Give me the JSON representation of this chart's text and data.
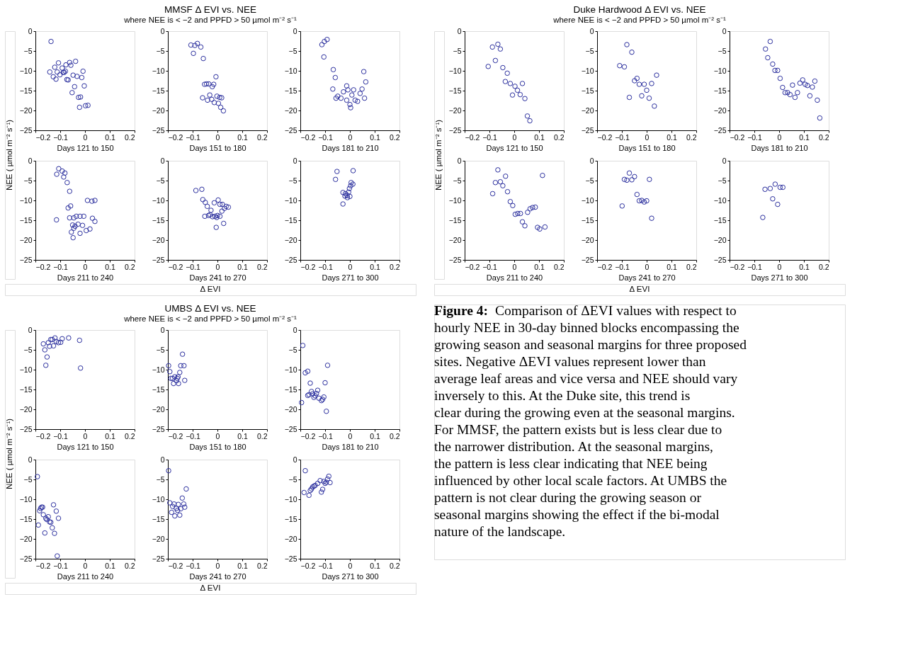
{
  "chart_data": [
    {
      "type": "other",
      "title": "MMSF   Δ EVI vs. NEE",
      "subtitle": "where NEE is < −2 and PPFD > 50        µmol m⁻² s⁻¹",
      "ylabel": "NEE (  µmol m⁻² s⁻¹)",
      "annotations": [
        "Δ EVI"
      ]
    },
    {
      "type": "scatter",
      "xlabel": "Days 121 to 150",
      "marker": "circle",
      "color": "#2b2f9e",
      "xlim": [
        -0.2,
        0.2
      ],
      "xticks": [
        -0.2,
        -0.1,
        0,
        0.1,
        0.2
      ],
      "ylim": [
        -25,
        0
      ],
      "yticks": [
        -25,
        -20,
        -15,
        -10,
        -5,
        0
      ],
      "x": [
        -0.137,
        -0.142,
        -0.128,
        -0.122,
        -0.117,
        -0.107,
        -0.112,
        -0.101,
        -0.092,
        -0.088,
        -0.084,
        -0.079,
        -0.077,
        -0.073,
        -0.068,
        -0.062,
        -0.057,
        -0.048,
        -0.038,
        -0.032,
        -0.042,
        -0.052,
        -0.026,
        -0.018,
        -0.013,
        -0.008,
        -0.003,
        -0.022,
        0.002,
        0.012
      ],
      "values": [
        -2.6,
        -10.3,
        -11.5,
        -9.1,
        -12.1,
        -8.0,
        -10.3,
        -11.0,
        -9.3,
        -10.4,
        -10.4,
        -10.1,
        -8.5,
        -12.2,
        -12.3,
        -7.9,
        -8.6,
        -11.1,
        -7.6,
        -11.4,
        -14.0,
        -15.5,
        -16.7,
        -16.6,
        -11.7,
        -10.1,
        -13.8,
        -19.2,
        -18.8,
        -18.7
      ]
    },
    {
      "type": "scatter",
      "xlabel": "Days 151 to 180",
      "marker": "circle",
      "color": "#2b2f9e",
      "xlim": [
        -0.2,
        0.2
      ],
      "xticks": [
        -0.2,
        -0.1,
        0,
        0.1,
        0.2
      ],
      "ylim": [
        -25,
        0
      ],
      "yticks": [
        -25,
        -20,
        -15,
        -10,
        -5,
        0
      ],
      "x": [
        -0.107,
        -0.091,
        -0.081,
        -0.067,
        -0.097,
        -0.057,
        -0.006,
        -0.052,
        -0.044,
        -0.035,
        -0.021,
        -0.015,
        -0.06,
        -0.04,
        -0.031,
        -0.023,
        -0.002,
        0.009,
        0.017,
        -0.013,
        0.004,
        0.013,
        0.024
      ],
      "values": [
        -3.5,
        -3.6,
        -3.1,
        -4.0,
        -5.6,
        -6.9,
        -11.5,
        -13.4,
        -13.3,
        -13.3,
        -14.0,
        -13.4,
        -16.8,
        -17.4,
        -16.1,
        -17.2,
        -16.4,
        -16.7,
        -16.8,
        -18.0,
        -18.2,
        -19.2,
        -20.1
      ]
    },
    {
      "type": "scatter",
      "xlabel": "Days 181 to 210",
      "marker": "circle",
      "color": "#2b2f9e",
      "xlim": [
        -0.2,
        0.2
      ],
      "xticks": [
        -0.2,
        -0.1,
        0,
        0.1,
        0.2
      ],
      "ylim": [
        -25,
        0
      ],
      "yticks": [
        -25,
        -20,
        -15,
        -10,
        -5,
        0
      ],
      "x": [
        -0.113,
        -0.103,
        -0.092,
        -0.105,
        -0.067,
        -0.059,
        -0.069,
        -0.049,
        -0.056,
        -0.026,
        -0.036,
        -0.013,
        -0.008,
        -0.013,
        0.0,
        0.003,
        0.015,
        0.008,
        0.021,
        0.041,
        0.031,
        0.059,
        0.049,
        0.064,
        0.056
      ],
      "values": [
        -3.4,
        -2.6,
        -2.1,
        -6.5,
        -9.7,
        -11.7,
        -14.6,
        -16.4,
        -16.9,
        -15.3,
        -16.9,
        -13.8,
        -14.8,
        -17.4,
        -18.5,
        -19.3,
        -14.8,
        -16.1,
        -17.4,
        -15.7,
        -17.7,
        -16.9,
        -14.6,
        -12.8,
        -10.2
      ]
    },
    {
      "type": "scatter",
      "xlabel": "Days 211 to 240",
      "marker": "circle",
      "color": "#2b2f9e",
      "xlim": [
        -0.2,
        0.2
      ],
      "xticks": [
        -0.2,
        -0.1,
        0,
        0.1,
        0.2
      ],
      "ylim": [
        -25,
        0
      ],
      "yticks": [
        -25,
        -20,
        -15,
        -10,
        -5,
        0
      ],
      "x": [
        -0.114,
        -0.106,
        -0.092,
        -0.086,
        -0.081,
        -0.072,
        -0.062,
        -0.068,
        -0.058,
        -0.115,
        -0.062,
        -0.045,
        -0.035,
        -0.02,
        -0.005,
        0.03,
        0.04,
        -0.05,
        -0.04,
        -0.028,
        -0.01,
        -0.055,
        -0.048,
        -0.02,
        0.005,
        0.02,
        -0.045,
        0.028,
        0.04,
        0.01
      ],
      "values": [
        -3.4,
        -2.0,
        -2.6,
        -4.1,
        -3.1,
        -5.5,
        -7.7,
        -11.9,
        -11.4,
        -14.9,
        -14.4,
        -14.4,
        -14.0,
        -14.0,
        -14.0,
        -14.5,
        -15.3,
        -16.2,
        -16.5,
        -16.0,
        -16.3,
        -18.0,
        -19.4,
        -18.3,
        -17.6,
        -17.2,
        -17.0,
        -10.2,
        -10.0,
        -10.0
      ]
    },
    {
      "type": "scatter",
      "xlabel": "Days 241 to 270",
      "marker": "circle",
      "color": "#2b2f9e",
      "xlim": [
        -0.2,
        0.2
      ],
      "xticks": [
        -0.2,
        -0.1,
        0,
        0.1,
        0.2
      ],
      "ylim": [
        -25,
        0
      ],
      "yticks": [
        -25,
        -20,
        -15,
        -10,
        -5,
        0
      ],
      "x": [
        -0.087,
        -0.063,
        -0.059,
        -0.049,
        -0.041,
        -0.026,
        -0.03,
        -0.01,
        -0.003,
        0.018,
        0.028,
        0.035,
        0.044,
        0.003,
        -0.013,
        -0.051,
        -0.036,
        -0.02,
        0.0,
        0.01,
        -0.005,
        0.025,
        0.01,
        0.02
      ],
      "values": [
        -7.5,
        -7.2,
        -9.8,
        -10.5,
        -11.5,
        -12.5,
        -13.6,
        -14.0,
        -14.3,
        -12.7,
        -12.0,
        -11.5,
        -11.7,
        -9.9,
        -10.6,
        -14.0,
        -13.8,
        -14.1,
        -13.8,
        -14.0,
        -16.8,
        -15.8,
        -11.0,
        -11.0
      ]
    },
    {
      "type": "scatter",
      "xlabel": "Days 271 to 300",
      "marker": "circle",
      "color": "#2b2f9e",
      "xlim": [
        -0.2,
        0.2
      ],
      "xticks": [
        -0.2,
        -0.1,
        0,
        0.1,
        0.2
      ],
      "ylim": [
        -25,
        0
      ],
      "yticks": [
        -25,
        -20,
        -15,
        -10,
        -5,
        0
      ],
      "x": [
        -0.058,
        -0.052,
        -0.028,
        -0.018,
        -0.011,
        -0.005,
        -0.002,
        0.003,
        0.005,
        0.012,
        0.013,
        -0.028,
        -0.01,
        0.0,
        -0.02
      ],
      "values": [
        -4.7,
        -2.7,
        -8.0,
        -8.3,
        -8.7,
        -7.9,
        -7.0,
        -6.3,
        -5.5,
        -5.9,
        -2.5,
        -10.9,
        -9.3,
        -9.0,
        -8.9
      ]
    },
    {
      "type": "other",
      "title": "Duke Hardwood     Δ EVI vs. NEE",
      "subtitle": "where NEE is < −2 and PPFD > 50        µmol m⁻² s⁻¹",
      "ylabel": "NEE (  µmol m⁻² s⁻¹)",
      "annotations": [
        "Δ EVI"
      ]
    },
    {
      "type": "scatter",
      "xlabel": "Days 121 to 150",
      "marker": "circle",
      "color": "#2b2f9e",
      "xlim": [
        -0.2,
        0.2
      ],
      "xticks": [
        -0.2,
        -0.1,
        0,
        0.1,
        0.2
      ],
      "ylim": [
        -25,
        0
      ],
      "yticks": [
        -25,
        -20,
        -15,
        -10,
        -5,
        0
      ],
      "x": [
        -0.105,
        -0.088,
        -0.066,
        -0.056,
        -0.076,
        -0.046,
        -0.028,
        -0.036,
        -0.016,
        0.003,
        0.013,
        -0.007,
        0.024,
        0.033,
        0.043,
        0.053,
        0.063
      ],
      "values": [
        -8.9,
        -4.0,
        -3.3,
        -4.5,
        -7.4,
        -9.2,
        -10.6,
        -12.7,
        -13.2,
        -13.9,
        -14.9,
        -16.1,
        -16.0,
        -13.2,
        -17.0,
        -21.4,
        -22.6
      ]
    },
    {
      "type": "scatter",
      "xlabel": "Days 151 to 180",
      "marker": "circle",
      "color": "#2b2f9e",
      "xlim": [
        -0.2,
        0.2
      ],
      "xticks": [
        -0.2,
        -0.1,
        0,
        0.1,
        0.2
      ],
      "ylim": [
        -25,
        0
      ],
      "yticks": [
        -25,
        -20,
        -15,
        -10,
        -5,
        0
      ],
      "x": [
        -0.109,
        -0.09,
        -0.08,
        -0.06,
        -0.07,
        -0.049,
        -0.039,
        -0.03,
        -0.01,
        -0.02,
        0.0,
        0.01,
        0.02,
        0.031,
        0.04
      ],
      "values": [
        -8.7,
        -9.0,
        -3.4,
        -5.3,
        -16.7,
        -12.5,
        -11.9,
        -13.4,
        -13.4,
        -16.3,
        -14.9,
        -16.9,
        -13.2,
        -18.9,
        -11.1
      ]
    },
    {
      "type": "scatter",
      "xlabel": "Days 181 to 210",
      "marker": "circle",
      "color": "#2b2f9e",
      "xlim": [
        -0.2,
        0.2
      ],
      "xticks": [
        -0.2,
        -0.1,
        0,
        0.1,
        0.2
      ],
      "ylim": [
        -25,
        0
      ],
      "yticks": [
        -25,
        -20,
        -15,
        -10,
        -5,
        0
      ],
      "x": [
        -0.055,
        -0.036,
        -0.046,
        -0.026,
        -0.017,
        -0.006,
        0.004,
        0.014,
        0.024,
        0.034,
        0.044,
        0.054,
        0.074,
        0.064,
        0.084,
        0.095,
        0.105,
        0.114,
        0.134,
        0.124,
        0.144,
        0.154,
        0.164
      ],
      "values": [
        -4.5,
        -2.6,
        -6.7,
        -8.3,
        -9.9,
        -9.9,
        -11.9,
        -14.2,
        -15.5,
        -15.5,
        -16.0,
        -13.6,
        -15.5,
        -16.7,
        -13.1,
        -12.3,
        -13.4,
        -13.7,
        -14.1,
        -16.3,
        -12.6,
        -17.4,
        -21.9
      ]
    },
    {
      "type": "scatter",
      "xlabel": "Days 211 to 240",
      "marker": "circle",
      "color": "#2b2f9e",
      "xlim": [
        -0.2,
        0.2
      ],
      "xticks": [
        -0.2,
        -0.1,
        0,
        0.1,
        0.2
      ],
      "ylim": [
        -25,
        0
      ],
      "yticks": [
        -25,
        -20,
        -15,
        -10,
        -5,
        0
      ],
      "x": [
        -0.087,
        -0.066,
        -0.076,
        -0.056,
        -0.046,
        -0.035,
        -0.027,
        -0.016,
        -0.006,
        0.004,
        0.014,
        0.025,
        0.033,
        0.043,
        0.054,
        0.064,
        0.074,
        0.085,
        0.094,
        0.103,
        0.124,
        0.114
      ],
      "values": [
        -8.3,
        -2.3,
        -5.5,
        -5.3,
        -6.3,
        -3.9,
        -7.8,
        -10.3,
        -11.3,
        -13.5,
        -13.3,
        -13.3,
        -15.4,
        -16.4,
        -13.0,
        -12.1,
        -11.8,
        -11.7,
        -16.8,
        -17.2,
        -16.7,
        -3.7
      ]
    },
    {
      "type": "scatter",
      "xlabel": "Days 241 to 270",
      "marker": "circle",
      "color": "#2b2f9e",
      "xlim": [
        -0.2,
        0.2
      ],
      "xticks": [
        -0.2,
        -0.1,
        0,
        0.1,
        0.2
      ],
      "ylim": [
        -25,
        0
      ],
      "yticks": [
        -25,
        -20,
        -15,
        -10,
        -5,
        0
      ],
      "x": [
        -0.099,
        -0.09,
        -0.08,
        -0.07,
        -0.06,
        -0.049,
        -0.039,
        -0.03,
        -0.02,
        -0.01,
        0.0,
        0.011,
        0.02
      ],
      "values": [
        -11.4,
        -4.7,
        -4.9,
        -3.1,
        -4.8,
        -4.0,
        -8.5,
        -10.1,
        -10.0,
        -10.4,
        -10.1,
        -4.7,
        -14.5
      ]
    },
    {
      "type": "scatter",
      "xlabel": "Days 271 to 300",
      "marker": "circle",
      "color": "#2b2f9e",
      "xlim": [
        -0.2,
        0.2
      ],
      "xticks": [
        -0.2,
        -0.1,
        0,
        0.1,
        0.2
      ],
      "ylim": [
        -25,
        0
      ],
      "yticks": [
        -25,
        -20,
        -15,
        -10,
        -5,
        0
      ],
      "x": [
        -0.066,
        -0.057,
        -0.036,
        -0.026,
        -0.016,
        -0.006,
        0.004,
        0.015
      ],
      "values": [
        -14.3,
        -7.2,
        -7.0,
        -9.6,
        -5.9,
        -11.0,
        -6.7,
        -6.7
      ]
    },
    {
      "type": "other",
      "title": "UMBS   Δ EVI vs. NEE",
      "subtitle": "where NEE is < −2 and PPFD > 50        µmol m⁻² s⁻¹",
      "ylabel": "NEE (  µmol m⁻² s⁻¹)",
      "annotations": [
        "Δ EVI"
      ]
    },
    {
      "type": "scatter",
      "xlabel": "Days 121 to 150",
      "marker": "circle",
      "color": "#2b2f9e",
      "xlim": [
        -0.2,
        0.2
      ],
      "xticks": [
        -0.2,
        -0.1,
        0,
        0.1,
        0.2
      ],
      "ylim": [
        -25,
        0
      ],
      "yticks": [
        -25,
        -20,
        -15,
        -10,
        -5,
        0
      ],
      "x": [
        -0.168,
        -0.162,
        -0.153,
        -0.158,
        -0.148,
        -0.143,
        -0.138,
        -0.132,
        -0.127,
        -0.121,
        -0.116,
        -0.107,
        -0.098,
        -0.092,
        -0.066,
        -0.022,
        -0.018
      ],
      "values": [
        -3.5,
        -5.0,
        -6.8,
        -8.9,
        -3.2,
        -4.1,
        -2.4,
        -2.4,
        -4.0,
        -2.0,
        -2.9,
        -3.2,
        -3.1,
        -2.2,
        -2.0,
        -2.6,
        -9.6
      ]
    },
    {
      "type": "scatter",
      "xlabel": "Days 151 to 180",
      "marker": "circle",
      "color": "#2b2f9e",
      "xlim": [
        -0.2,
        0.2
      ],
      "xticks": [
        -0.2,
        -0.1,
        0,
        0.1,
        0.2
      ],
      "ylim": [
        -25,
        0
      ],
      "yticks": [
        -25,
        -20,
        -15,
        -10,
        -5,
        0
      ],
      "x": [
        -0.197,
        -0.192,
        -0.188,
        -0.181,
        -0.177,
        -0.172,
        -0.165,
        -0.162,
        -0.157,
        -0.152,
        -0.148,
        -0.141,
        -0.135,
        -0.132,
        -0.159
      ],
      "values": [
        -9.0,
        -10.5,
        -12.2,
        -12.2,
        -13.5,
        -11.8,
        -12.8,
        -12.2,
        -13.5,
        -10.7,
        -9.0,
        -6.1,
        -9.0,
        -12.7,
        -11.8
      ]
    },
    {
      "type": "scatter",
      "xlabel": "Days 181 to 210",
      "marker": "circle",
      "color": "#2b2f9e",
      "xlim": [
        -0.2,
        0.2
      ],
      "xticks": [
        -0.2,
        -0.1,
        0,
        0.1,
        0.2
      ],
      "ylim": [
        -25,
        0
      ],
      "yticks": [
        -25,
        -20,
        -15,
        -10,
        -5,
        0
      ],
      "x": [
        -0.19,
        -0.18,
        -0.17,
        -0.195,
        -0.09,
        -0.16,
        -0.165,
        -0.17,
        -0.15,
        -0.155,
        -0.14,
        -0.13,
        -0.125,
        -0.115,
        -0.11,
        -0.105,
        -0.1,
        -0.095,
        -0.135,
        -0.145
      ],
      "values": [
        -3.9,
        -10.8,
        -10.4,
        -18.3,
        -8.9,
        -13.4,
        -16.3,
        -16.5,
        -16.1,
        -15.5,
        -16.6,
        -15.2,
        -17.2,
        -17.8,
        -17.5,
        -16.9,
        -13.3,
        -20.5,
        -16.0,
        -17.0
      ]
    },
    {
      "type": "scatter",
      "xlabel": "Days 211 to 240",
      "marker": "circle",
      "color": "#2b2f9e",
      "xlim": [
        -0.2,
        0.2
      ],
      "xticks": [
        -0.2,
        -0.1,
        0,
        0.1,
        0.2
      ],
      "ylim": [
        -25,
        0
      ],
      "yticks": [
        -25,
        -20,
        -15,
        -10,
        -5,
        0
      ],
      "x": [
        -0.192,
        -0.188,
        -0.183,
        -0.179,
        -0.175,
        -0.171,
        -0.168,
        -0.162,
        -0.158,
        -0.154,
        -0.148,
        -0.143,
        -0.138,
        -0.132,
        -0.127,
        -0.123,
        -0.116,
        -0.112,
        -0.107
      ],
      "values": [
        -4.3,
        -16.5,
        -12.9,
        -12.3,
        -12.0,
        -12.0,
        -13.9,
        -18.5,
        -14.8,
        -15.1,
        -14.4,
        -15.7,
        -15.8,
        -17.2,
        -11.4,
        -18.6,
        -13.0,
        -24.3,
        -14.8
      ]
    },
    {
      "type": "scatter",
      "xlabel": "Days 241 to 270",
      "marker": "circle",
      "color": "#2b2f9e",
      "xlim": [
        -0.2,
        0.2
      ],
      "xticks": [
        -0.2,
        -0.1,
        0,
        0.1,
        0.2
      ],
      "ylim": [
        -25,
        0
      ],
      "yticks": [
        -25,
        -20,
        -15,
        -10,
        -5,
        0
      ],
      "x": [
        -0.197,
        -0.192,
        -0.185,
        -0.181,
        -0.175,
        -0.172,
        -0.166,
        -0.161,
        -0.158,
        -0.152,
        -0.148,
        -0.142,
        -0.136,
        -0.132,
        -0.126
      ],
      "values": [
        -2.8,
        -10.9,
        -13.3,
        -11.8,
        -11.2,
        -14.2,
        -12.3,
        -12.8,
        -11.3,
        -14.0,
        -12.4,
        -9.7,
        -11.2,
        -12.0,
        -7.4
      ]
    },
    {
      "type": "scatter",
      "xlabel": "Days 271 to 300",
      "marker": "circle",
      "color": "#2b2f9e",
      "xlim": [
        -0.2,
        0.2
      ],
      "xticks": [
        -0.2,
        -0.1,
        0,
        0.1,
        0.2
      ],
      "ylim": [
        -25,
        0
      ],
      "yticks": [
        -25,
        -20,
        -15,
        -10,
        -5,
        0
      ],
      "x": [
        -0.18,
        -0.185,
        -0.165,
        -0.16,
        -0.15,
        -0.145,
        -0.14,
        -0.13,
        -0.12,
        -0.115,
        -0.11,
        -0.105,
        -0.1,
        -0.09,
        -0.085,
        -0.08,
        -0.095,
        -0.155
      ],
      "values": [
        -2.8,
        -8.3,
        -9.0,
        -7.8,
        -6.9,
        -6.7,
        -6.5,
        -6.0,
        -5.3,
        -8.2,
        -7.5,
        -5.5,
        -6.0,
        -4.9,
        -4.2,
        -5.8,
        -5.7,
        -7.4
      ]
    },
    {
      "type": "other",
      "annotations": [
        "Figure 4:",
        "Comparison of ΔEVI values with respect to hourly NEE in 30-day binned blocks encompassing the growing season and seasonal margins for three proposed sites.  Negative ΔEVI values represent lower than average leaf areas and vice versa and NEE should vary inversely to this.  At the Duke site, this trend is clear during the growing even at the seasonal margins.  For MMSF, the pattern exists but is less clear due to the narrower distribution.  At the seasonal margins, the pattern is less clear indicating that NEE being influenced by other local scale factors.  At UMBS the pattern is not clear during the growing season or seasonal margins showing the effect if the bi-modal nature of the landscape."
      ]
    }
  ]
}
